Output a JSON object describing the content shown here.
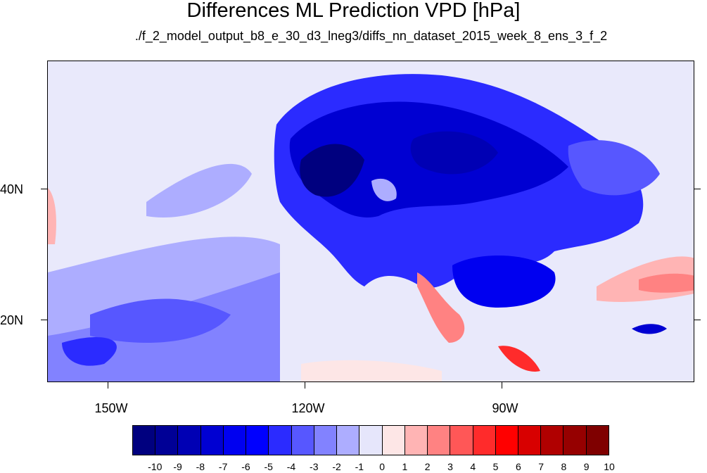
{
  "title": "Differences ML Prediction VPD [hPa]",
  "subtitle": "./f_2_model_output_b8_e_30_d3_lneg3/diffs_nn_dataset_2015_week_8_ens_3_f_2",
  "lon_labels": [
    "150W",
    "120W",
    "90W"
  ],
  "lat_labels": [
    "40N",
    "20N"
  ],
  "colorbar": {
    "labels": [
      "-10",
      "-9",
      "-8",
      "-7",
      "-6",
      "-5",
      "-4",
      "-3",
      "-2",
      "-1",
      "0",
      "1",
      "2",
      "3",
      "4",
      "5",
      "6",
      "7",
      "8",
      "9",
      "10"
    ],
    "colors": [
      "#00007f",
      "#000096",
      "#0000b4",
      "#0000d2",
      "#0000f0",
      "#0000ff",
      "#2b2bff",
      "#5757ff",
      "#8282ff",
      "#adadff",
      "#e6e6fb",
      "#fde6e6",
      "#ffb4b4",
      "#ff8282",
      "#ff5757",
      "#ff2b2b",
      "#ff0000",
      "#d80000",
      "#b00000",
      "#960000",
      "#7f0000"
    ]
  },
  "map_colors": {
    "background": "#e9e9fb",
    "light_blue": "#adadff",
    "mid_blue": "#8282ff",
    "blue": "#5757ff",
    "strong_blue": "#2b2bff",
    "deep_blue": "#0000d2",
    "darkest_blue": "#00007f",
    "pale_pink": "#fde6e6",
    "pink": "#ffb4b4",
    "red": "#ff5757",
    "deep_red": "#d80000"
  }
}
